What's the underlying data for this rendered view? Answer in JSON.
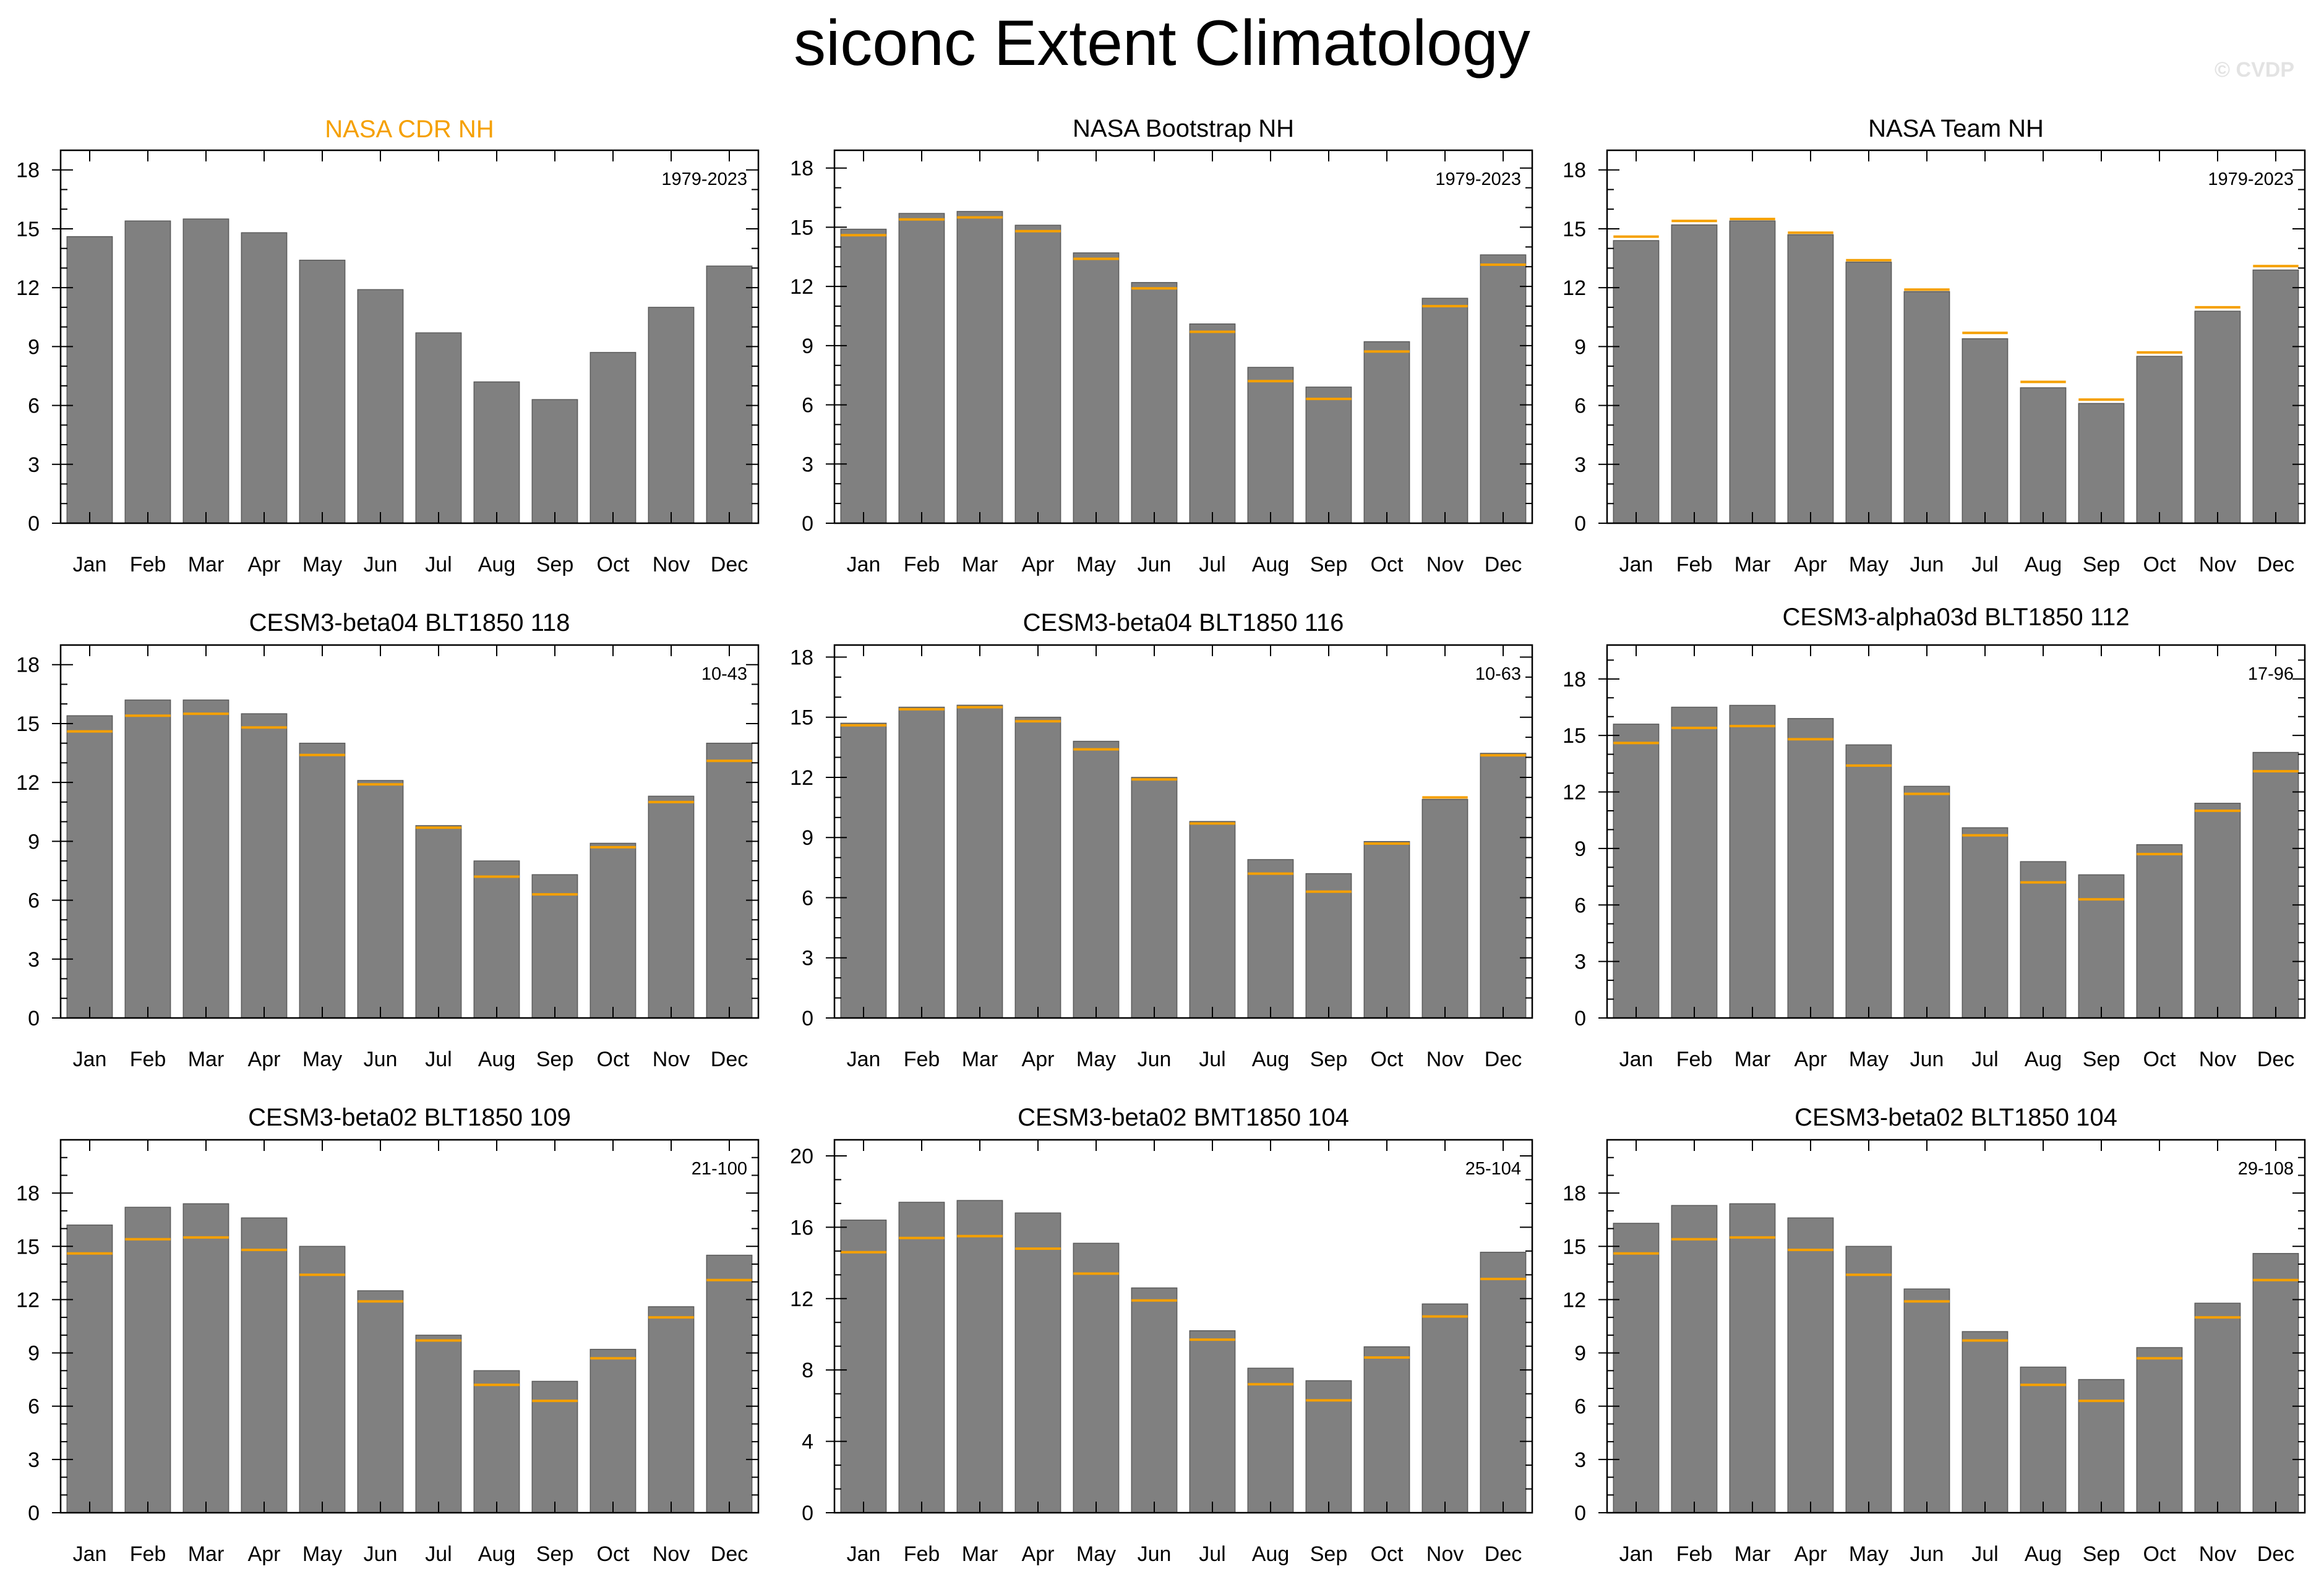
{
  "title": "siconc Extent Climatology",
  "watermark": "© CVDP",
  "colors": {
    "bar": "#808080",
    "obs_line": "#f5a000",
    "highlight_title": "#f5a000",
    "frame": "#000000",
    "text": "#000000"
  },
  "chart_data": [
    {
      "type": "bar",
      "title": "NASA CDR NH",
      "title_highlight": true,
      "period": "1979-2023",
      "categories": [
        "Jan",
        "Feb",
        "Mar",
        "Apr",
        "May",
        "Jun",
        "Jul",
        "Aug",
        "Sep",
        "Oct",
        "Nov",
        "Dec"
      ],
      "values": [
        14.6,
        15.4,
        15.5,
        14.8,
        13.4,
        11.9,
        9.7,
        7.2,
        6.3,
        8.7,
        11.0,
        13.1
      ],
      "reference": [],
      "ylim": [
        0,
        19.0
      ],
      "yticks": [
        0,
        3,
        6,
        9,
        12,
        15,
        18
      ]
    },
    {
      "type": "bar",
      "title": "NASA Bootstrap NH",
      "title_highlight": false,
      "period": "1979-2023",
      "categories": [
        "Jan",
        "Feb",
        "Mar",
        "Apr",
        "May",
        "Jun",
        "Jul",
        "Aug",
        "Sep",
        "Oct",
        "Nov",
        "Dec"
      ],
      "values": [
        14.9,
        15.7,
        15.8,
        15.1,
        13.7,
        12.2,
        10.1,
        7.9,
        6.9,
        9.2,
        11.4,
        13.6
      ],
      "reference": [
        14.6,
        15.4,
        15.5,
        14.8,
        13.4,
        11.9,
        9.7,
        7.2,
        6.3,
        8.7,
        11.0,
        13.1
      ],
      "ylim": [
        0,
        18.9
      ],
      "yticks": [
        0,
        3,
        6,
        9,
        12,
        15,
        18
      ]
    },
    {
      "type": "bar",
      "title": "NASA Team NH",
      "title_highlight": false,
      "period": "1979-2023",
      "categories": [
        "Jan",
        "Feb",
        "Mar",
        "Apr",
        "May",
        "Jun",
        "Jul",
        "Aug",
        "Sep",
        "Oct",
        "Nov",
        "Dec"
      ],
      "values": [
        14.4,
        15.2,
        15.4,
        14.7,
        13.3,
        11.8,
        9.4,
        6.9,
        6.1,
        8.5,
        10.8,
        12.9
      ],
      "reference": [
        14.6,
        15.4,
        15.5,
        14.8,
        13.4,
        11.9,
        9.7,
        7.2,
        6.3,
        8.7,
        11.0,
        13.1
      ],
      "ylim": [
        0,
        19.0
      ],
      "yticks": [
        0,
        3,
        6,
        9,
        12,
        15,
        18
      ]
    },
    {
      "type": "bar",
      "title": "CESM3-beta04 BLT1850 118",
      "title_highlight": false,
      "period": "10-43",
      "categories": [
        "Jan",
        "Feb",
        "Mar",
        "Apr",
        "May",
        "Jun",
        "Jul",
        "Aug",
        "Sep",
        "Oct",
        "Nov",
        "Dec"
      ],
      "values": [
        15.4,
        16.2,
        16.2,
        15.5,
        14.0,
        12.1,
        9.8,
        8.0,
        7.3,
        8.9,
        11.3,
        14.0
      ],
      "reference": [
        14.6,
        15.4,
        15.5,
        14.8,
        13.4,
        11.9,
        9.7,
        7.2,
        6.3,
        8.7,
        11.0,
        13.1
      ],
      "ylim": [
        0,
        19.0
      ],
      "yticks": [
        0,
        3,
        6,
        9,
        12,
        15,
        18
      ]
    },
    {
      "type": "bar",
      "title": "CESM3-beta04 BLT1850 116",
      "title_highlight": false,
      "period": "10-63",
      "categories": [
        "Jan",
        "Feb",
        "Mar",
        "Apr",
        "May",
        "Jun",
        "Jul",
        "Aug",
        "Sep",
        "Oct",
        "Nov",
        "Dec"
      ],
      "values": [
        14.7,
        15.5,
        15.6,
        15.0,
        13.8,
        12.0,
        9.8,
        7.9,
        7.2,
        8.8,
        10.9,
        13.2
      ],
      "reference": [
        14.6,
        15.4,
        15.5,
        14.8,
        13.4,
        11.9,
        9.7,
        7.2,
        6.3,
        8.7,
        11.0,
        13.1
      ],
      "ylim": [
        0,
        18.6
      ],
      "yticks": [
        0,
        3,
        6,
        9,
        12,
        15,
        18
      ]
    },
    {
      "type": "bar",
      "title": "CESM3-alpha03d BLT1850 112",
      "title_highlight": false,
      "period": "17-96",
      "categories": [
        "Jan",
        "Feb",
        "Mar",
        "Apr",
        "May",
        "Jun",
        "Jul",
        "Aug",
        "Sep",
        "Oct",
        "Nov",
        "Dec"
      ],
      "values": [
        15.6,
        16.5,
        16.6,
        15.9,
        14.5,
        12.3,
        10.1,
        8.3,
        7.6,
        9.2,
        11.4,
        14.1
      ],
      "reference": [
        14.6,
        15.4,
        15.5,
        14.8,
        13.4,
        11.9,
        9.7,
        7.2,
        6.3,
        8.7,
        11.0,
        13.1
      ],
      "ylim": [
        0,
        19.8
      ],
      "yticks": [
        0,
        3,
        6,
        9,
        12,
        15,
        18
      ]
    },
    {
      "type": "bar",
      "title": "CESM3-beta02 BLT1850 109",
      "title_highlight": false,
      "period": "21-100",
      "categories": [
        "Jan",
        "Feb",
        "Mar",
        "Apr",
        "May",
        "Jun",
        "Jul",
        "Aug",
        "Sep",
        "Oct",
        "Nov",
        "Dec"
      ],
      "values": [
        16.2,
        17.2,
        17.4,
        16.6,
        15.0,
        12.5,
        10.0,
        8.0,
        7.4,
        9.2,
        11.6,
        14.5
      ],
      "reference": [
        14.6,
        15.4,
        15.5,
        14.8,
        13.4,
        11.9,
        9.7,
        7.2,
        6.3,
        8.7,
        11.0,
        13.1
      ],
      "ylim": [
        0,
        21.0
      ],
      "yticks": [
        0,
        3,
        6,
        9,
        12,
        15,
        18
      ]
    },
    {
      "type": "bar",
      "title": "CESM3-beta02 BMT1850 104",
      "title_highlight": false,
      "period": "25-104",
      "categories": [
        "Jan",
        "Feb",
        "Mar",
        "Apr",
        "May",
        "Jun",
        "Jul",
        "Aug",
        "Sep",
        "Oct",
        "Nov",
        "Dec"
      ],
      "values": [
        16.4,
        17.4,
        17.5,
        16.8,
        15.1,
        12.6,
        10.2,
        8.1,
        7.4,
        9.3,
        11.7,
        14.6
      ],
      "reference": [
        14.6,
        15.4,
        15.5,
        14.8,
        13.4,
        11.9,
        9.7,
        7.2,
        6.3,
        8.7,
        11.0,
        13.1
      ],
      "ylim": [
        0,
        20.9
      ],
      "yticks": [
        0,
        4,
        8,
        12,
        16,
        20
      ]
    },
    {
      "type": "bar",
      "title": "CESM3-beta02 BLT1850 104",
      "title_highlight": false,
      "period": "29-108",
      "categories": [
        "Jan",
        "Feb",
        "Mar",
        "Apr",
        "May",
        "Jun",
        "Jul",
        "Aug",
        "Sep",
        "Oct",
        "Nov",
        "Dec"
      ],
      "values": [
        16.3,
        17.3,
        17.4,
        16.6,
        15.0,
        12.6,
        10.2,
        8.2,
        7.5,
        9.3,
        11.8,
        14.6
      ],
      "reference": [
        14.6,
        15.4,
        15.5,
        14.8,
        13.4,
        11.9,
        9.7,
        7.2,
        6.3,
        8.7,
        11.0,
        13.1
      ],
      "ylim": [
        0,
        21.0
      ],
      "yticks": [
        0,
        3,
        6,
        9,
        12,
        15,
        18
      ]
    }
  ]
}
